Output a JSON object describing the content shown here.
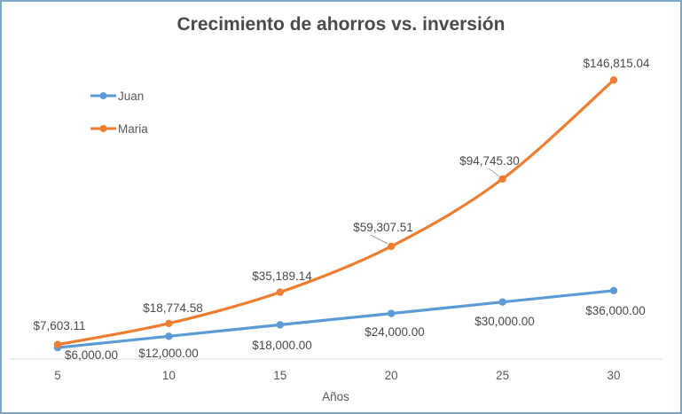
{
  "chart_data": {
    "type": "line",
    "title": "Crecimiento de ahorros vs. inversión",
    "xlabel": "Años",
    "ylabel": "",
    "x": [
      5,
      10,
      15,
      20,
      25,
      30
    ],
    "xlim": [
      5,
      30
    ],
    "ylim": [
      0,
      160000
    ],
    "grid": false,
    "legend_position": "top-left",
    "line_style": "smooth",
    "markers": "circle",
    "series": [
      {
        "name": "Juan",
        "color": "#5B9BD5",
        "values": [
          6000,
          12000,
          18000,
          24000,
          30000,
          36000
        ],
        "labels": [
          "$6,000.00",
          "$12,000.00",
          "$18,000.00",
          "$24,000.00",
          "$30,000.00",
          "$36,000.00"
        ],
        "label_position": "below"
      },
      {
        "name": "Maria",
        "color": "#ED7D31",
        "values": [
          7603.11,
          18774.58,
          35189.14,
          59307.51,
          94745.3,
          146815.04
        ],
        "labels": [
          "$7,603.11",
          "$18,774.58",
          "$35,189.14",
          "$59,307.51",
          "$94,745.30",
          "$146,815.04"
        ],
        "label_position": "above"
      }
    ],
    "colors": {
      "axis_line": "#D9D9D9",
      "leader_line": "#A6A6A6",
      "tick_text": "#595959",
      "label_text": "#4A4A4A",
      "title_text": "#4A4A4A",
      "chart_border": "#7DA7C7"
    }
  }
}
